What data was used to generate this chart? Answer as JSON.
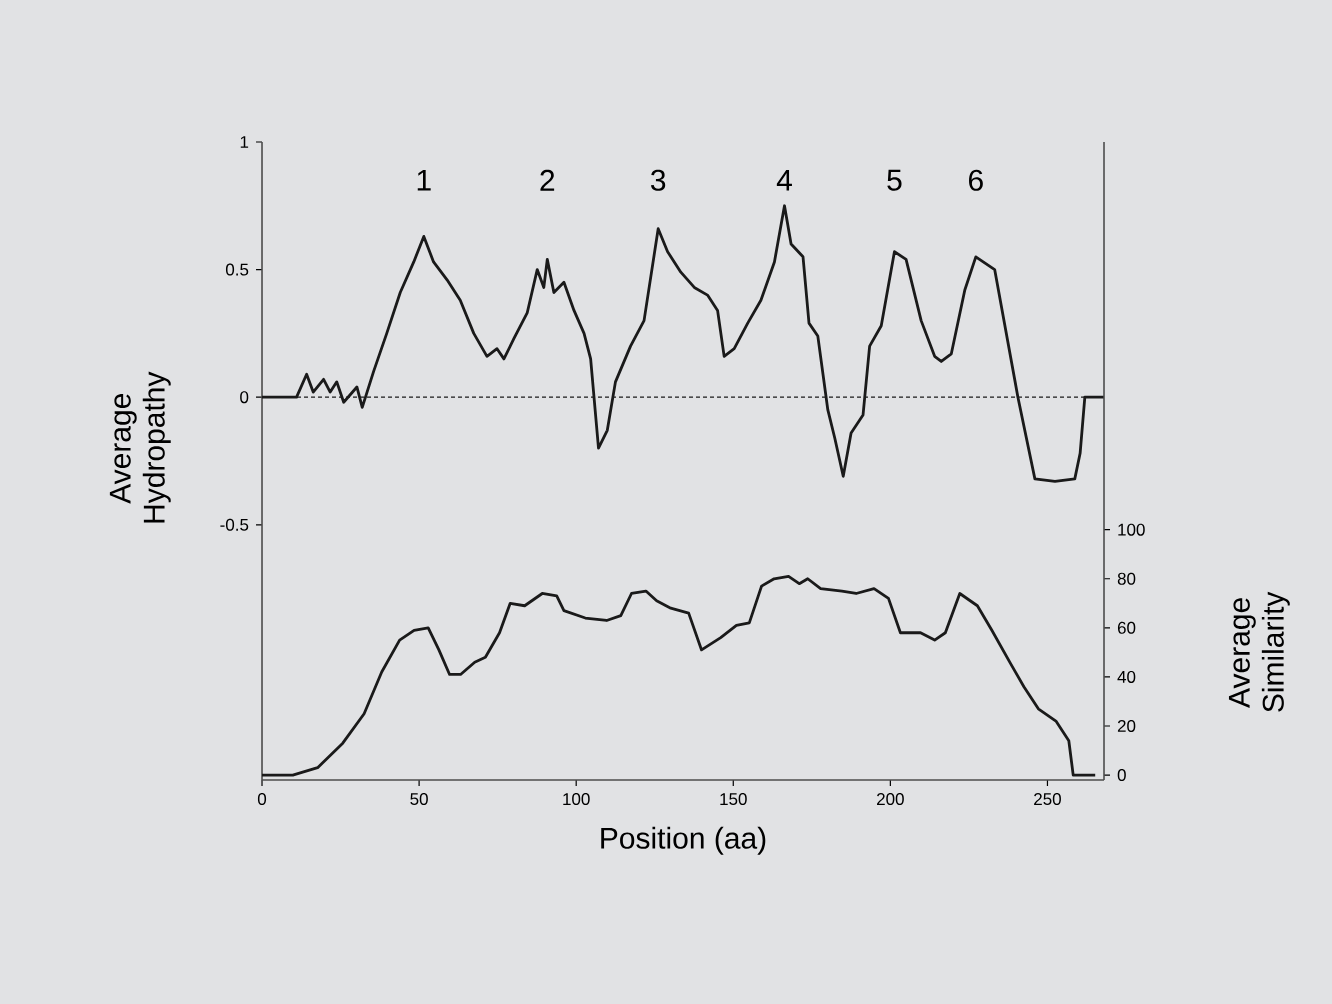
{
  "chart_data": {
    "type": "line",
    "xlabel": "Position (aa)",
    "ylabel": "Average Hydropathy",
    "y2label": "Average Similarity",
    "xlim": [
      0,
      268
    ],
    "xticks": [
      0,
      50,
      100,
      150,
      200,
      250
    ],
    "ylim": [
      -1.5,
      1
    ],
    "yticks": [
      1,
      0.5,
      0,
      -0.5
    ],
    "y2lim": [
      -2,
      258
    ],
    "y2ticks": [
      0,
      20,
      40,
      60,
      80,
      100
    ],
    "grid": false,
    "marker": "none",
    "line_style": "solid",
    "ref_lines": [
      {
        "axis": "y",
        "value": 0,
        "line_style": "dashed",
        "color": "#1a1a1a"
      }
    ],
    "annotations": [
      "1",
      "2",
      "3",
      "4",
      "5",
      "6"
    ],
    "series": [
      {
        "color": "#1a1a1a",
        "x": [
          0,
          11,
          14.2,
          16.3,
          19.6,
          21.7,
          23.8,
          26,
          30.2,
          31.9,
          35.5,
          39.7,
          44,
          48.3,
          51.5,
          54.6,
          58.9,
          63.1,
          67.4,
          71.6,
          74.8,
          77,
          80.2,
          84.4,
          87.6,
          89.7,
          90.8,
          92.9,
          96.1,
          99.3,
          102.5,
          104.6,
          107.1,
          109.9,
          112.5,
          117.3,
          121.6,
          126.1,
          129.1,
          133.3,
          137.6,
          141.8,
          145,
          147.1,
          150.3,
          154.6,
          158.8,
          163.1,
          166.3,
          168.4,
          172.2,
          174.1,
          176.9,
          180.1,
          182.3,
          185,
          187.5,
          191.3,
          193.4,
          197.1,
          201.3,
          205,
          209.8,
          214.1,
          216.2,
          219.4,
          223.7,
          227.2,
          233.2,
          240.6,
          246,
          252.4,
          258.7,
          260.4,
          261.9,
          268
        ],
        "values": [
          0,
          0,
          0.09,
          0.02,
          0.07,
          0.02,
          0.06,
          -0.02,
          0.04,
          -0.04,
          0.1,
          0.25,
          0.41,
          0.53,
          0.63,
          0.53,
          0.46,
          0.38,
          0.25,
          0.16,
          0.19,
          0.15,
          0.23,
          0.33,
          0.5,
          0.43,
          0.54,
          0.41,
          0.45,
          0.34,
          0.25,
          0.15,
          -0.2,
          -0.13,
          0.06,
          0.2,
          0.3,
          0.66,
          0.57,
          0.49,
          0.43,
          0.4,
          0.34,
          0.16,
          0.19,
          0.29,
          0.38,
          0.53,
          0.75,
          0.6,
          0.55,
          0.29,
          0.24,
          -0.05,
          -0.16,
          -0.31,
          -0.14,
          -0.07,
          0.2,
          0.28,
          0.57,
          0.54,
          0.3,
          0.16,
          0.14,
          0.17,
          0.42,
          0.55,
          0.5,
          0,
          -0.32,
          -0.33,
          -0.32,
          -0.22,
          0,
          0
        ]
      },
      {
        "color": "#1a1a1a",
        "axis": "y2",
        "x": [
          0,
          9.8,
          17.7,
          25.7,
          32.5,
          38.1,
          43.8,
          48.4,
          52.9,
          56.3,
          59.7,
          63.2,
          67.7,
          71.1,
          75.6,
          79,
          83.6,
          89.2,
          93.8,
          96.1,
          102.9,
          109.7,
          114.2,
          117.6,
          122.2,
          125.6,
          130.1,
          135.8,
          139.9,
          146,
          151,
          155.1,
          159,
          163,
          167.6,
          171,
          173.7,
          177.8,
          184.6,
          189.1,
          194.8,
          199.4,
          203.2,
          209.6,
          214.1,
          217.5,
          222.1,
          227.7,
          232.3,
          238,
          242.5,
          247.1,
          252.7,
          256.8,
          258.2,
          265.2
        ],
        "values": [
          0,
          0,
          3,
          13,
          25,
          42,
          55,
          59,
          60,
          51,
          41,
          41,
          46,
          48,
          58,
          70,
          69,
          74,
          73,
          67,
          64,
          63,
          65,
          74,
          75,
          71,
          68,
          66,
          51,
          56,
          61,
          62,
          77,
          80,
          81,
          78,
          80,
          76,
          75,
          74,
          76,
          72,
          58,
          58,
          55,
          58,
          74,
          69,
          59,
          46,
          36,
          27,
          22,
          14,
          0,
          0
        ]
      }
    ]
  }
}
